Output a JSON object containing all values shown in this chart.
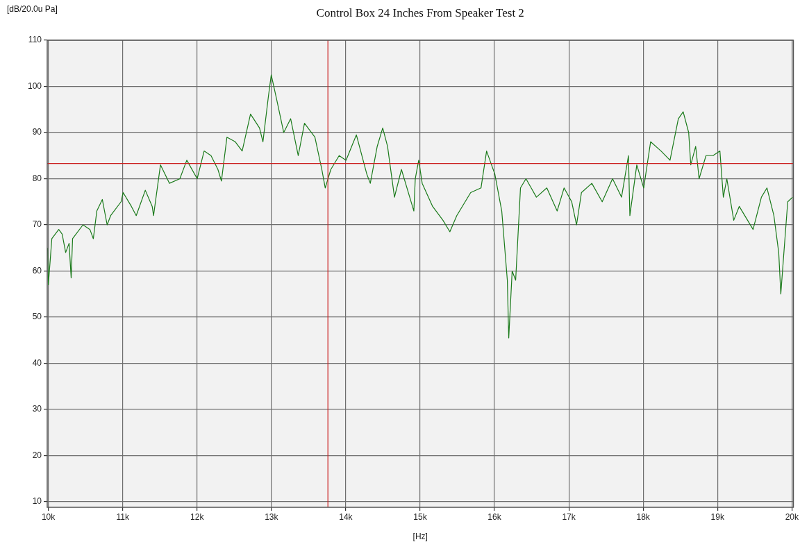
{
  "chart_data": {
    "type": "line",
    "title": "Control Box 24 Inches From Speaker Test 2",
    "ylabel": "[dB/20.0u Pa]",
    "xlabel": "[Hz]",
    "xlim": [
      9985,
      20020
    ],
    "ylim": [
      8.8,
      110
    ],
    "xticks": [
      {
        "value": 10000,
        "label": "10k"
      },
      {
        "value": 11000,
        "label": "11k"
      },
      {
        "value": 12000,
        "label": "12k"
      },
      {
        "value": 13000,
        "label": "13k"
      },
      {
        "value": 14000,
        "label": "14k"
      },
      {
        "value": 15000,
        "label": "15k"
      },
      {
        "value": 16000,
        "label": "16k"
      },
      {
        "value": 17000,
        "label": "17k"
      },
      {
        "value": 18000,
        "label": "18k"
      },
      {
        "value": 19000,
        "label": "19k"
      },
      {
        "value": 20000,
        "label": "20k"
      }
    ],
    "yticks": [
      10,
      20,
      30,
      40,
      50,
      60,
      70,
      80,
      90,
      100,
      110
    ],
    "grid": true,
    "marker": "none",
    "line_style": "solid",
    "ref_lines": [
      {
        "axis": "y",
        "value": 83.3,
        "color": "#cc2222"
      },
      {
        "axis": "x",
        "value": 13760,
        "color": "#cc2222"
      }
    ],
    "series": [
      {
        "color": "#1a7a1a",
        "x": [
          9990,
          10000,
          10047,
          10140,
          10186,
          10233,
          10279,
          10307,
          10326,
          10466,
          10559,
          10605,
          10652,
          10726,
          10791,
          10838,
          10978,
          11006,
          11117,
          11182,
          11304,
          11397,
          11415,
          11508,
          11629,
          11769,
          11862,
          12002,
          12095,
          12188,
          12281,
          12328,
          12402,
          12514,
          12607,
          12719,
          12840,
          12886,
          12961,
          12998,
          13073,
          13166,
          13259,
          13361,
          13445,
          13585,
          13678,
          13724,
          13799,
          13911,
          14004,
          14143,
          14283,
          14330,
          14423,
          14497,
          14562,
          14655,
          14749,
          14916,
          14935,
          14981,
          15028,
          15168,
          15307,
          15400,
          15493,
          15680,
          15819,
          15894,
          16005,
          16098,
          16173,
          16192,
          16238,
          16285,
          16350,
          16424,
          16564,
          16704,
          16843,
          16936,
          17039,
          17104,
          17170,
          17309,
          17449,
          17588,
          17709,
          17802,
          17821,
          17914,
          18007,
          18100,
          18240,
          18361,
          18473,
          18538,
          18612,
          18640,
          18706,
          18752,
          18845,
          18939,
          19032,
          19078,
          19125,
          19218,
          19292,
          19404,
          19478,
          19590,
          19665,
          19758,
          19823,
          19851,
          19888,
          19944,
          20009
        ],
        "values": [
          65,
          57,
          67,
          69,
          68,
          64,
          66,
          58.5,
          67,
          70,
          69,
          67,
          73,
          75.5,
          70,
          72,
          75,
          77,
          74,
          72,
          77.5,
          74,
          72,
          83,
          79,
          80,
          84,
          80,
          86,
          85,
          82,
          79.5,
          89,
          88,
          86,
          94,
          91,
          88,
          98,
          102.5,
          97,
          90,
          93,
          85,
          92,
          89,
          82,
          78,
          82,
          85,
          84,
          89.5,
          81,
          79,
          87,
          91,
          87,
          76,
          82,
          73,
          80,
          84,
          79,
          74,
          71,
          68.5,
          72,
          77,
          78,
          86,
          81,
          73,
          58,
          45.5,
          60,
          58,
          78,
          80,
          76,
          78,
          73,
          78,
          75,
          70,
          77,
          79,
          75,
          80,
          76,
          85,
          72,
          83,
          78,
          88,
          86,
          84,
          93,
          94.5,
          90,
          83,
          87,
          80,
          85,
          85,
          86,
          76,
          80,
          71,
          74,
          71,
          69,
          76,
          78,
          72,
          64,
          55,
          63,
          75,
          76
        ]
      }
    ]
  }
}
